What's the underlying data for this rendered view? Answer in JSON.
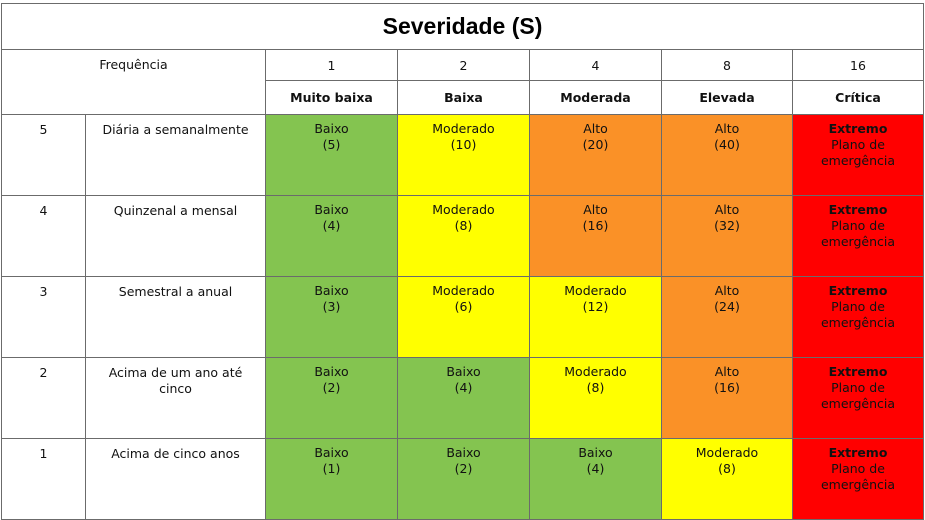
{
  "title": "Severidade (S)",
  "frequency_header": "Frequência",
  "severity_levels": [
    {
      "value": "1",
      "label": "Muito baixa"
    },
    {
      "value": "2",
      "label": "Baixa"
    },
    {
      "value": "4",
      "label": "Moderada"
    },
    {
      "value": "8",
      "label": "Elevada"
    },
    {
      "value": "16",
      "label": "Crítica"
    }
  ],
  "rows": [
    {
      "freq": "5",
      "desc": "Diária a semanalmente",
      "cells": [
        {
          "level": "Baixo",
          "score": "(5)",
          "plan": ""
        },
        {
          "level": "Moderado",
          "score": "(10)",
          "plan": ""
        },
        {
          "level": "Alto",
          "score": "(20)",
          "plan": ""
        },
        {
          "level": "Alto",
          "score": "(40)",
          "plan": ""
        },
        {
          "level": "Extremo",
          "score": "",
          "plan": "Plano de emergência"
        }
      ]
    },
    {
      "freq": "4",
      "desc": "Quinzenal a mensal",
      "cells": [
        {
          "level": "Baixo",
          "score": "(4)",
          "plan": ""
        },
        {
          "level": "Moderado",
          "score": "(8)",
          "plan": ""
        },
        {
          "level": "Alto",
          "score": "(16)",
          "plan": ""
        },
        {
          "level": "Alto",
          "score": "(32)",
          "plan": ""
        },
        {
          "level": "Extremo",
          "score": "",
          "plan": "Plano de emergência"
        }
      ]
    },
    {
      "freq": "3",
      "desc": "Semestral a anual",
      "cells": [
        {
          "level": "Baixo",
          "score": "(3)",
          "plan": ""
        },
        {
          "level": "Moderado",
          "score": "(6)",
          "plan": ""
        },
        {
          "level": "Moderado",
          "score": "(12)",
          "plan": ""
        },
        {
          "level": "Alto",
          "score": "(24)",
          "plan": ""
        },
        {
          "level": "Extremo",
          "score": "",
          "plan": "Plano de emergência"
        }
      ]
    },
    {
      "freq": "2",
      "desc": "Acima de um ano até cinco",
      "cells": [
        {
          "level": "Baixo",
          "score": "(2)",
          "plan": ""
        },
        {
          "level": "Baixo",
          "score": "(4)",
          "plan": ""
        },
        {
          "level": "Moderado",
          "score": "(8)",
          "plan": ""
        },
        {
          "level": "Alto",
          "score": "(16)",
          "plan": ""
        },
        {
          "level": "Extremo",
          "score": "",
          "plan": "Plano de emergência"
        }
      ]
    },
    {
      "freq": "1",
      "desc": "Acima de cinco anos",
      "cells": [
        {
          "level": "Baixo",
          "score": "(1)",
          "plan": ""
        },
        {
          "level": "Baixo",
          "score": "(2)",
          "plan": ""
        },
        {
          "level": "Baixo",
          "score": "(4)",
          "plan": ""
        },
        {
          "level": "Moderado",
          "score": "(8)",
          "plan": ""
        },
        {
          "level": "Extremo",
          "score": "",
          "plan": "Plano de emergência"
        }
      ]
    }
  ],
  "colors": {
    "Baixo": "#84c450",
    "Moderado": "#ffff00",
    "Alto": "#fa9127",
    "Extremo": "#ff0000"
  }
}
